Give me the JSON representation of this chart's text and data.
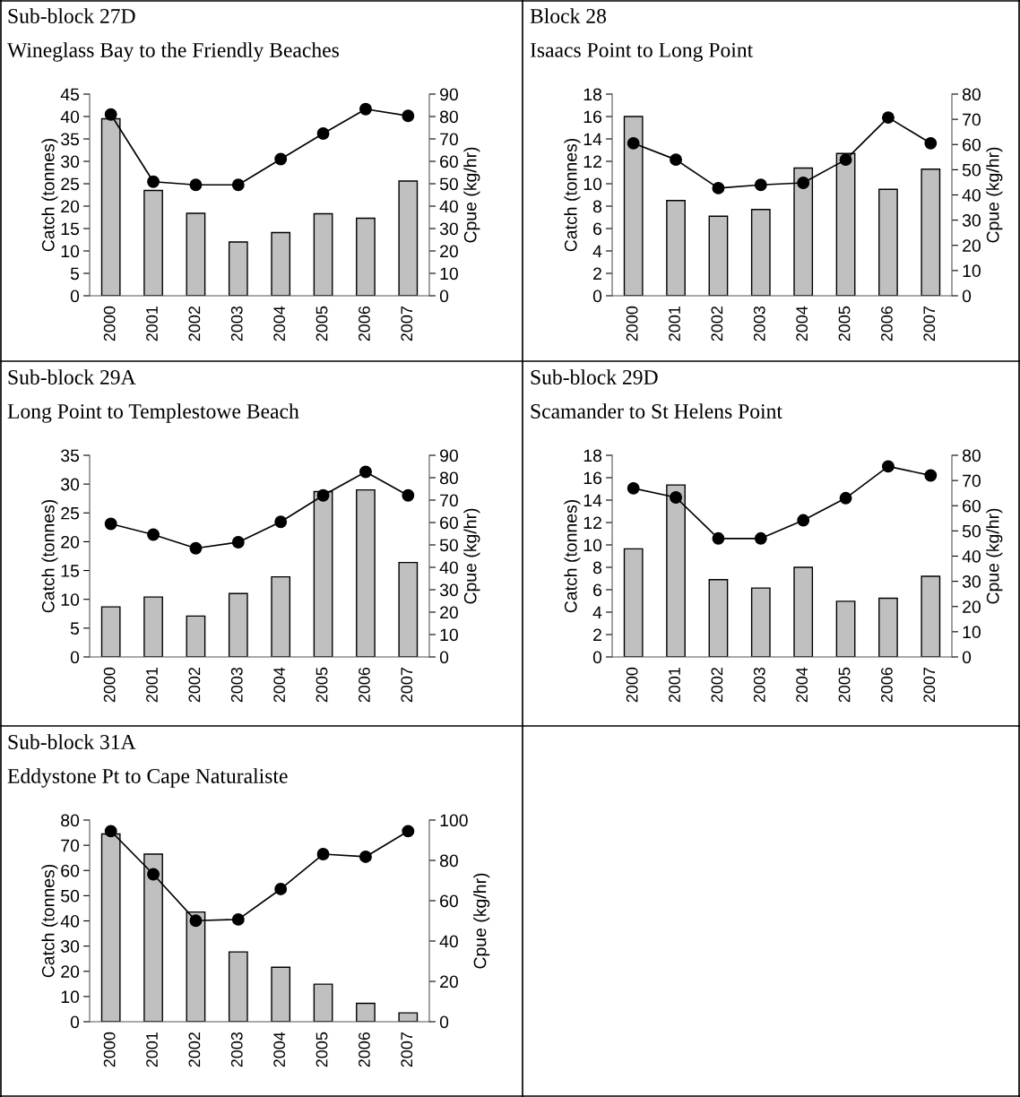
{
  "chart_data": [
    {
      "type": "bar",
      "title": "Sub-block 27D",
      "subtitle": "Wineglass Bay to the Friendly Beaches",
      "categories": [
        "2000",
        "2001",
        "2002",
        "2003",
        "2004",
        "2005",
        "2006",
        "2007"
      ],
      "ylabel": "Catch (tonnes)",
      "y2label": "Cpue (kg/hr)",
      "ylim": [
        0,
        45
      ],
      "yticks": [
        0,
        5,
        10,
        15,
        20,
        25,
        30,
        35,
        40,
        45
      ],
      "y2lim": [
        0,
        90
      ],
      "y2ticks": [
        0,
        10,
        20,
        30,
        40,
        50,
        60,
        70,
        80,
        90
      ],
      "series": [
        {
          "color": "#c0c0c0",
          "values": [
            39.5,
            23.5,
            18.4,
            12.0,
            14.1,
            18.3,
            17.3,
            25.6
          ]
        },
        {
          "type": "line",
          "axis": "y2",
          "color": "#000000",
          "marker": "circle",
          "values": [
            80.9,
            50.9,
            49.5,
            49.5,
            61.0,
            72.4,
            83.3,
            80.3
          ]
        }
      ]
    },
    {
      "type": "bar",
      "title": "Block 28",
      "subtitle": "Isaacs Point to Long Point",
      "categories": [
        "2000",
        "2001",
        "2002",
        "2003",
        "2004",
        "2005",
        "2006",
        "2007"
      ],
      "ylabel": "Catch (tonnes)",
      "y2label": "Cpue (kg/hr)",
      "ylim": [
        0,
        18
      ],
      "yticks": [
        0,
        2,
        4,
        6,
        8,
        10,
        12,
        14,
        16,
        18
      ],
      "y2lim": [
        0,
        80
      ],
      "y2ticks": [
        0,
        10,
        20,
        30,
        40,
        50,
        60,
        70,
        80
      ],
      "series": [
        {
          "color": "#c0c0c0",
          "values": [
            16.0,
            8.5,
            7.1,
            7.7,
            11.4,
            12.7,
            9.5,
            11.3
          ]
        },
        {
          "type": "line",
          "axis": "y2",
          "color": "#000000",
          "marker": "circle",
          "values": [
            60.5,
            54.0,
            42.7,
            44.0,
            44.8,
            54.0,
            70.7,
            60.5
          ]
        }
      ]
    },
    {
      "type": "bar",
      "title": "Sub-block 29A",
      "subtitle": "Long Point to Templestowe Beach",
      "categories": [
        "2000",
        "2001",
        "2002",
        "2003",
        "2004",
        "2005",
        "2006",
        "2007"
      ],
      "ylabel": "Catch (tonnes)",
      "y2label": "Cpue (kg/hr)",
      "ylim": [
        0,
        35
      ],
      "yticks": [
        0,
        5,
        10,
        15,
        20,
        25,
        30,
        35
      ],
      "y2lim": [
        0,
        90
      ],
      "y2ticks": [
        0,
        10,
        20,
        30,
        40,
        50,
        60,
        70,
        80,
        90
      ],
      "series": [
        {
          "color": "#c0c0c0",
          "values": [
            8.7,
            10.4,
            7.1,
            11.0,
            13.9,
            28.7,
            29.0,
            16.4
          ]
        },
        {
          "type": "line",
          "axis": "y2",
          "color": "#000000",
          "marker": "circle",
          "values": [
            59.4,
            54.6,
            48.5,
            51.2,
            60.3,
            72.1,
            82.6,
            72.1
          ]
        }
      ]
    },
    {
      "type": "bar",
      "title": "Sub-block 29D",
      "subtitle": "Scamander to St Helens Point",
      "categories": [
        "2000",
        "2001",
        "2002",
        "2003",
        "2004",
        "2005",
        "2006",
        "2007"
      ],
      "ylabel": "Catch (tonnes)",
      "y2label": "Cpue (kg/hr)",
      "ylim": [
        0,
        18
      ],
      "yticks": [
        0,
        2,
        4,
        6,
        8,
        10,
        12,
        14,
        16,
        18
      ],
      "y2lim": [
        0,
        80
      ],
      "y2ticks": [
        0,
        10,
        20,
        30,
        40,
        50,
        60,
        70,
        80
      ],
      "series": [
        {
          "color": "#c0c0c0",
          "values": [
            9.65,
            15.35,
            6.9,
            6.15,
            8.0,
            4.97,
            5.24,
            7.2
          ]
        },
        {
          "type": "line",
          "axis": "y2",
          "color": "#000000",
          "marker": "circle",
          "values": [
            66.9,
            63.3,
            47.0,
            47.0,
            54.2,
            63.0,
            75.6,
            72.0
          ]
        }
      ]
    },
    {
      "type": "bar",
      "title": "Sub-block 31A",
      "subtitle": "Eddystone Pt to Cape Naturaliste",
      "categories": [
        "2000",
        "2001",
        "2002",
        "2003",
        "2004",
        "2005",
        "2006",
        "2007"
      ],
      "ylabel": "Catch (tonnes)",
      "y2label": "Cpue (kg/hr)",
      "ylim": [
        0,
        80
      ],
      "yticks": [
        0,
        10,
        20,
        30,
        40,
        50,
        60,
        70,
        80
      ],
      "y2lim": [
        0,
        100
      ],
      "y2ticks": [
        0,
        20,
        40,
        60,
        80,
        100
      ],
      "series": [
        {
          "color": "#c0c0c0",
          "values": [
            74.5,
            66.5,
            43.5,
            27.7,
            21.6,
            14.9,
            7.3,
            3.5
          ]
        },
        {
          "type": "line",
          "axis": "y2",
          "color": "#000000",
          "marker": "circle",
          "values": [
            94.5,
            73.1,
            50.1,
            50.7,
            65.8,
            83.1,
            81.8,
            94.5
          ]
        }
      ]
    }
  ]
}
